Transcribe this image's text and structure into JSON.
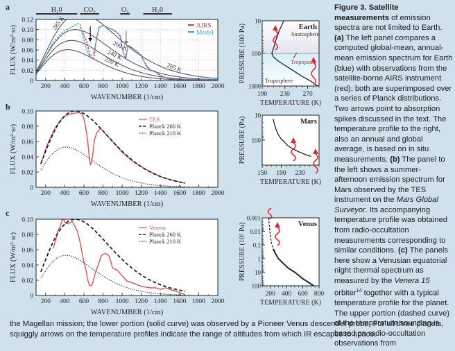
{
  "figure": {
    "panel_labels": [
      "a",
      "b",
      "c"
    ],
    "caption": {
      "title": "Figure 3. Satellite measurements",
      "p1": " of emission spectra are not limited to Earth. ",
      "a_label": "(a)",
      "p2": " The left panel compares a computed global-mean, annual-mean emission spectrum for Earth (blue) with observations from the satellite-borne AIRS instrument (red); both are superimposed over a series of Planck distributions. Two arrows point to absorption spikes discussed in the text. The temperature profile to the right, also an annual and global average, is based on in situ measurements. ",
      "b_label": "(b)",
      "p3": " The panel to the left shows a summer-afternoon emission spectrum for Mars observed by the TES instrument on the ",
      "mgs": "Mars Global Surveyor",
      "p4": ". Its accompanying temperature profile was obtained from radio-occultation measurements corresponding to similar conditions. ",
      "c_label": "(c)",
      "p5": " The panels here show a Venusian equatorial night thermal spectrum as measured by the ",
      "venera": "Venera 15",
      "p6": " orbiter",
      "ref": "14",
      "p7": " together with a typical temperature profile for the planet. The upper portion (dashed curve) of the temperature sounding is based on radio-occultation observations from",
      "bottom": "the Magellan mission; the lower portion (solid curve) was observed by a Pioneer Venus descender probe. For all three planets, squiggly arrows on the temperature profiles indicate the range of altitudes from which IR escapes to space."
    }
  },
  "chart_data": [
    {
      "id": "a",
      "type": "line",
      "title": "",
      "xlabel": "WAVENUMBER (1/cm)",
      "ylabel": "FLUX (W/m²·sr)",
      "xlim": [
        100,
        2000
      ],
      "ylim": [
        0,
        0.12
      ],
      "xticks": [
        200,
        400,
        600,
        800,
        1000,
        1200,
        1400,
        1600,
        1800,
        2000
      ],
      "yticks": [
        0,
        0.02,
        0.04,
        0.06,
        0.08,
        0.1,
        0.12
      ],
      "ytick_labels": [
        "0",
        "0.02",
        "0.04",
        "0.06",
        "0.08",
        "0.10",
        "0.12"
      ],
      "grid": true,
      "legend": {
        "position": "top-right",
        "entries": [
          {
            "name": "AIRS",
            "color": "#e8344a"
          },
          {
            "name": "Model",
            "color": "#2aa8e0"
          }
        ]
      },
      "bands": [
        {
          "label": "H₂0",
          "from": 100,
          "to": 530
        },
        {
          "label": "CO₂",
          "from": 560,
          "to": 760
        },
        {
          "label": "O₃",
          "from": 980,
          "to": 1080
        },
        {
          "label": "H₂0",
          "from": 1220,
          "to": 1520
        }
      ],
      "planck_curves": [
        {
          "label": "285 K",
          "T": 285
        },
        {
          "label": "260 K",
          "T": 260
        },
        {
          "label": "240 K",
          "T": 240
        },
        {
          "label": "220 K",
          "T": 220
        }
      ],
      "arrows_at": [
        667,
        1042
      ],
      "series": [
        {
          "name": "AIRS",
          "color": "#e8344a",
          "x": [
            560,
            600,
            640,
            660,
            670,
            690,
            710,
            730,
            760,
            800,
            850,
            900,
            950,
            980,
            1000,
            1020,
            1040,
            1060,
            1080,
            1100,
            1150,
            1200,
            1250,
            1300,
            1350,
            1400,
            1450,
            1500,
            1550,
            1600,
            1700,
            1800,
            1900,
            2000
          ],
          "y": [
            0.105,
            0.09,
            0.07,
            0.05,
            0.045,
            0.043,
            0.05,
            0.082,
            0.105,
            0.108,
            0.104,
            0.1,
            0.094,
            0.088,
            0.065,
            0.05,
            0.043,
            0.068,
            0.068,
            0.064,
            0.058,
            0.05,
            0.03,
            0.02,
            0.018,
            0.01,
            0.006,
            0.004,
            0.003,
            0.003,
            0.002,
            0.002,
            0.002,
            0.002
          ]
        },
        {
          "name": "Model",
          "color": "#2aa8e0",
          "x": [
            100,
            150,
            200,
            250,
            300,
            350,
            400,
            450,
            500,
            530,
            560,
            600,
            640,
            660,
            670,
            690,
            710,
            730,
            760,
            800,
            850,
            900,
            950,
            980,
            1000,
            1020,
            1040,
            1060,
            1080,
            1100,
            1150,
            1200,
            1250,
            1300,
            1350,
            1400,
            1450,
            1500,
            1550,
            1600,
            1700,
            1800,
            1900,
            2000
          ],
          "y": [
            0.015,
            0.03,
            0.048,
            0.065,
            0.08,
            0.09,
            0.098,
            0.103,
            0.108,
            0.112,
            0.11,
            0.08,
            0.055,
            0.048,
            0.05,
            0.05,
            0.06,
            0.078,
            0.104,
            0.108,
            0.104,
            0.1,
            0.093,
            0.086,
            0.062,
            0.052,
            0.048,
            0.066,
            0.068,
            0.065,
            0.058,
            0.048,
            0.028,
            0.02,
            0.016,
            0.009,
            0.006,
            0.004,
            0.003,
            0.003,
            0.002,
            0.002,
            0.002,
            0.002
          ]
        }
      ]
    },
    {
      "id": "b",
      "type": "line",
      "xlabel": "WAVENUMBER (1/cm)",
      "ylabel": "FLUX (W/m²·sr)",
      "xlim": [
        100,
        2000
      ],
      "ylim": [
        0,
        0.1
      ],
      "xticks": [
        200,
        400,
        600,
        800,
        1000,
        1200,
        1400,
        1600,
        1800,
        2000
      ],
      "yticks": [
        0,
        0.02,
        0.04,
        0.06,
        0.08,
        0.1
      ],
      "ytick_labels": [
        "0",
        "0.02",
        "0.04",
        "0.06",
        "0.08",
        "0.10"
      ],
      "legend": {
        "position": "top-right",
        "entries": [
          {
            "name": "TES",
            "style": "solid",
            "color": "#e05050"
          },
          {
            "name": "Planck 260 K",
            "style": "dashed",
            "color": "#222"
          },
          {
            "name": "Planck 210 K",
            "style": "dotted",
            "color": "#222"
          }
        ]
      },
      "series": [
        {
          "name": "TES",
          "color": "#e05050",
          "x": [
            150,
            200,
            250,
            300,
            350,
            400,
            450,
            500,
            550,
            580,
            600,
            620,
            640,
            660,
            670,
            690,
            710,
            730,
            750,
            770,
            800,
            850,
            900,
            1000,
            1100,
            1200,
            1300,
            1400,
            1500,
            1600,
            1660
          ],
          "y": [
            0.03,
            0.05,
            0.065,
            0.078,
            0.087,
            0.093,
            0.096,
            0.097,
            0.098,
            0.096,
            0.09,
            0.078,
            0.06,
            0.035,
            0.029,
            0.04,
            0.062,
            0.07,
            0.074,
            0.077,
            0.074,
            0.067,
            0.06,
            0.046,
            0.035,
            0.027,
            0.02,
            0.014,
            0.01,
            0.007,
            0.005
          ]
        },
        {
          "name": "Planck 260 K",
          "T": 260,
          "x_range": [
            150,
            1660
          ],
          "style": "dashed"
        },
        {
          "name": "Planck 210 K",
          "T": 210,
          "x_range": [
            150,
            1660
          ],
          "style": "dotted"
        }
      ]
    },
    {
      "id": "c",
      "type": "line",
      "xlabel": "WAVENUMBER (1/cm)",
      "ylabel": "FLUX (W/m²·sr)",
      "xlim": [
        100,
        2000
      ],
      "ylim": [
        0,
        0.1
      ],
      "xticks": [
        200,
        400,
        600,
        800,
        1000,
        1200,
        1400,
        1600,
        1800,
        2000
      ],
      "yticks": [
        0,
        0.02,
        0.04,
        0.06,
        0.08,
        0.1
      ],
      "ytick_labels": [
        "0",
        "0.02",
        "0.04",
        "0.06",
        "0.08",
        "0.10"
      ],
      "legend": {
        "position": "top-right",
        "entries": [
          {
            "name": "Venera",
            "style": "solid",
            "color": "#e05050"
          },
          {
            "name": "Planck 260 K",
            "style": "dashed",
            "color": "#222"
          },
          {
            "name": "Planck 210 K",
            "style": "dotted",
            "color": "#222"
          }
        ]
      },
      "series": [
        {
          "name": "Venera",
          "color": "#e05050",
          "x": [
            280,
            300,
            330,
            350,
            370,
            390,
            400,
            420,
            450,
            480,
            500,
            530,
            560,
            590,
            620,
            640,
            660,
            680,
            700,
            720,
            750,
            780,
            800,
            830,
            860,
            880,
            900,
            950,
            1000,
            1050,
            1100,
            1200,
            1300,
            1350,
            1400,
            1450,
            1500,
            1600,
            1660
          ],
          "y": [
            0.062,
            0.07,
            0.085,
            0.09,
            0.098,
            0.1,
            0.096,
            0.094,
            0.095,
            0.097,
            0.092,
            0.085,
            0.07,
            0.05,
            0.035,
            0.02,
            0.013,
            0.013,
            0.02,
            0.03,
            0.04,
            0.052,
            0.054,
            0.055,
            0.052,
            0.045,
            0.036,
            0.033,
            0.026,
            0.019,
            0.017,
            0.012,
            0.01,
            0.01,
            0.008,
            0.01,
            0.008,
            0.004,
            0.001
          ]
        },
        {
          "name": "Planck 260 K",
          "T": 260,
          "x_range": [
            150,
            1660
          ],
          "style": "dashed"
        },
        {
          "name": "Planck 210 K",
          "T": 210,
          "x_range": [
            150,
            1660
          ],
          "style": "dotted"
        }
      ]
    },
    {
      "id": "earth-profile",
      "type": "line",
      "title": "Earth",
      "xlabel": "TEMPERATURE (K)",
      "ylabel": "PRESSURE (100 Pa)",
      "xlim": [
        190,
        290
      ],
      "ylim": [
        1000,
        10
      ],
      "yscale": "log",
      "xticks": [
        190,
        230,
        270
      ],
      "yticks": [
        10,
        100,
        1000
      ],
      "annotations": [
        "Stratosphere",
        "Tropopause",
        "Troposphere"
      ],
      "tropopause_pressure": 100,
      "series": [
        {
          "name": "profile",
          "x": [
            228,
            220,
            214,
            210,
            207,
            210,
            220,
            240,
            260,
            275,
            288
          ],
          "y": [
            10,
            20,
            40,
            70,
            100,
            130,
            180,
            300,
            500,
            700,
            1000
          ]
        }
      ]
    },
    {
      "id": "mars-profile",
      "type": "line",
      "title": "Mars",
      "xlabel": "TEMPERATURE (K)",
      "ylabel": "PRESSURE (Pa)",
      "xlim": [
        150,
        270
      ],
      "ylim": [
        1000,
        10
      ],
      "yscale": "log",
      "xticks": [
        150,
        190,
        230
      ],
      "yticks": [
        10,
        100
      ],
      "series": [
        {
          "name": "profile",
          "x": [
            173,
            175,
            178,
            180,
            183,
            188,
            195,
            200,
            205,
            210,
            225,
            240,
            253
          ],
          "y": [
            14,
            20,
            30,
            40,
            55,
            80,
            110,
            140,
            170,
            200,
            280,
            370,
            450
          ]
        }
      ]
    },
    {
      "id": "venus-profile",
      "type": "line",
      "title": "Venus",
      "xlabel": "TEMPERATURE (K)",
      "ylabel": "PRESSURE (10⁵ Pa)",
      "xlim": [
        100,
        800
      ],
      "ylim": [
        100,
        0.001
      ],
      "yscale": "log",
      "xticks": [
        200,
        400,
        600,
        800
      ],
      "yticks": [
        0.001,
        0.01,
        0.1,
        1,
        10,
        100
      ],
      "ytick_labels": [
        "0.001",
        "0.01",
        "0.1",
        "1",
        "10",
        "100"
      ],
      "series": [
        {
          "name": "Magellan (dashed)",
          "style": "dashed",
          "x": [
            180,
            190,
            200,
            215,
            230,
            240
          ],
          "y": [
            0.001,
            0.005,
            0.02,
            0.08,
            0.15,
            0.3
          ]
        },
        {
          "name": "Pioneer Venus (solid)",
          "style": "solid",
          "x": [
            240,
            260,
            300,
            350,
            420,
            500,
            600,
            735
          ],
          "y": [
            0.2,
            0.4,
            1,
            2,
            5,
            10,
            30,
            100
          ]
        }
      ]
    }
  ]
}
